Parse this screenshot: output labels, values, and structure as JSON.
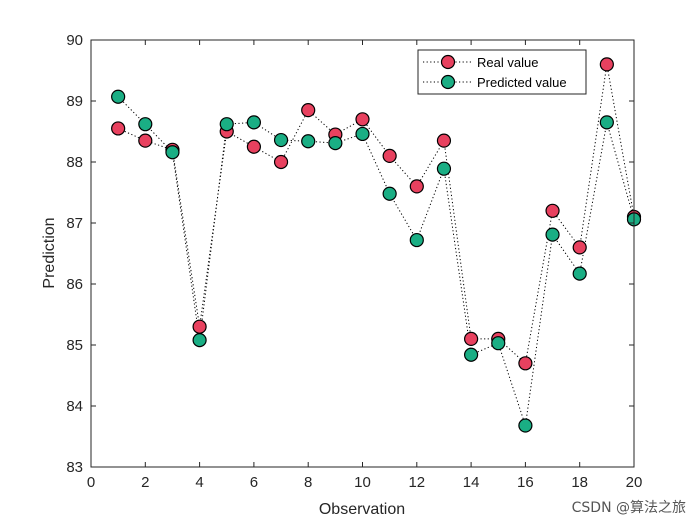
{
  "chart_data": {
    "type": "line",
    "xlabel": "Observation",
    "ylabel": "Prediction",
    "xlim": [
      0,
      20
    ],
    "ylim": [
      83,
      90
    ],
    "xticks": [
      0,
      2,
      4,
      6,
      8,
      10,
      12,
      14,
      16,
      18,
      20
    ],
    "yticks": [
      83,
      84,
      85,
      86,
      87,
      88,
      89,
      90
    ],
    "grid": false,
    "legend_position": "top-right",
    "x": [
      1,
      2,
      3,
      4,
      5,
      6,
      7,
      8,
      9,
      10,
      11,
      12,
      13,
      14,
      15,
      16,
      17,
      18,
      19,
      20
    ],
    "series": [
      {
        "name": "Real value",
        "color": "#e8415f",
        "line_style": "dotted",
        "marker": "circle",
        "values": [
          88.55,
          88.35,
          88.2,
          85.3,
          88.5,
          88.25,
          88.0,
          88.85,
          88.45,
          88.7,
          88.1,
          87.6,
          88.35,
          85.1,
          85.1,
          84.7,
          87.2,
          86.6,
          89.6,
          87.1
        ]
      },
      {
        "name": "Predicted value",
        "color": "#1aae84",
        "line_style": "dotted",
        "marker": "circle",
        "values": [
          89.07,
          88.62,
          88.16,
          85.08,
          88.62,
          88.65,
          88.36,
          88.34,
          88.31,
          88.46,
          87.48,
          86.72,
          87.89,
          84.84,
          85.03,
          83.68,
          86.81,
          86.17,
          88.65,
          87.06
        ]
      }
    ]
  },
  "watermark": "CSDN @算法之旅"
}
